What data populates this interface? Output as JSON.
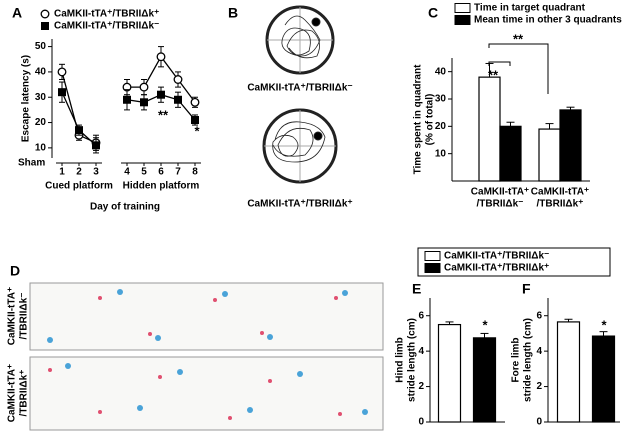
{
  "chart_data": [
    {
      "panel": "A",
      "type": "line",
      "y_label": "Escape latency (s)",
      "x_label": "Day of training",
      "x_groups": [
        {
          "label": "Cued platform",
          "x": [
            1,
            2,
            3
          ]
        },
        {
          "label": "Hidden platform",
          "x": [
            4,
            5,
            6,
            7,
            8
          ]
        }
      ],
      "series": [
        {
          "name": "CaMKII-tTA⁺/TBRIIΔk⁺",
          "marker": "circle",
          "color": "#000000",
          "fill": "#ffffff",
          "values": [
            [
              40,
              15,
              12
            ],
            [
              34,
              34,
              46,
              37,
              28
            ]
          ],
          "errors": [
            [
              3,
              2,
              3
            ],
            [
              3,
              3,
              4,
              3,
              2
            ]
          ]
        },
        {
          "name": "CaMKII-tTA⁺/TBRIIΔk⁻",
          "marker": "square",
          "color": "#000000",
          "fill": "#000000",
          "values": [
            [
              32,
              17,
              11
            ],
            [
              29,
              28,
              31,
              29,
              21
            ]
          ],
          "errors": [
            [
              4,
              2,
              3
            ],
            [
              4,
              3,
              3,
              3,
              2
            ]
          ]
        }
      ],
      "annotations": [
        "Sham",
        "**",
        "*"
      ],
      "ylim": [
        6,
        53
      ],
      "yticks": [
        10,
        20,
        30,
        40,
        50
      ]
    },
    {
      "panel": "C",
      "type": "bar",
      "y_label": [
        "Time spent in quadrant",
        "(% of total)"
      ],
      "categories": [
        [
          "CaMKII-tTA⁺",
          "/TBRIIΔk⁻"
        ],
        [
          "CaMKII-tTA⁺",
          "/TBRIIΔk⁺"
        ]
      ],
      "series": [
        {
          "name": "Time  in target quadrant",
          "color": "#ffffff",
          "values": [
            38,
            19
          ],
          "errors": [
            5,
            2
          ]
        },
        {
          "name": "Mean time in other 3 quadrants",
          "color": "#000000",
          "values": [
            20,
            26
          ],
          "errors": [
            1.5,
            1
          ]
        }
      ],
      "annotations": [
        "**",
        "**"
      ],
      "ylim": [
        0,
        45
      ],
      "yticks": [
        10,
        20,
        30,
        40
      ]
    },
    {
      "panel": "E",
      "type": "bar",
      "y_label": [
        "Hind limb",
        "stride length (cm)"
      ],
      "series": [
        {
          "name": "CaMKII-tTA⁺/TBRIIΔk⁻",
          "color": "#ffffff",
          "values": [
            5.5
          ],
          "errors": [
            0.15
          ]
        },
        {
          "name": "CaMKII-tTA⁺/TBRIIΔk⁺",
          "color": "#000000",
          "values": [
            4.75
          ],
          "errors": [
            0.25
          ]
        }
      ],
      "annotations": [
        "*"
      ],
      "ylim": [
        0,
        7
      ],
      "yticks": [
        0,
        2,
        4,
        6
      ]
    },
    {
      "panel": "F",
      "type": "bar",
      "y_label": [
        "Fore limb",
        "stride length (cm)"
      ],
      "series": [
        {
          "color": "#ffffff",
          "values": [
            5.65
          ],
          "errors": [
            0.15
          ]
        },
        {
          "color": "#000000",
          "values": [
            4.85
          ],
          "errors": [
            0.25
          ]
        }
      ],
      "annotations": [
        "*"
      ],
      "ylim": [
        0,
        7
      ],
      "yticks": [
        0,
        2,
        4,
        6
      ]
    }
  ],
  "figures": [
    {
      "panel": "B",
      "labels": [
        "CaMKII-tTA⁺/TBRIIΔk⁻",
        "CaMKII-tTA⁺/TBRIIΔk⁺"
      ]
    },
    {
      "panel": "D",
      "labels": [
        [
          "CaMKII-tTA⁺",
          "/TBRIIΔk⁻"
        ],
        [
          "CaMKII-tTA⁺",
          "/TBRIIΔk⁺"
        ]
      ]
    }
  ]
}
